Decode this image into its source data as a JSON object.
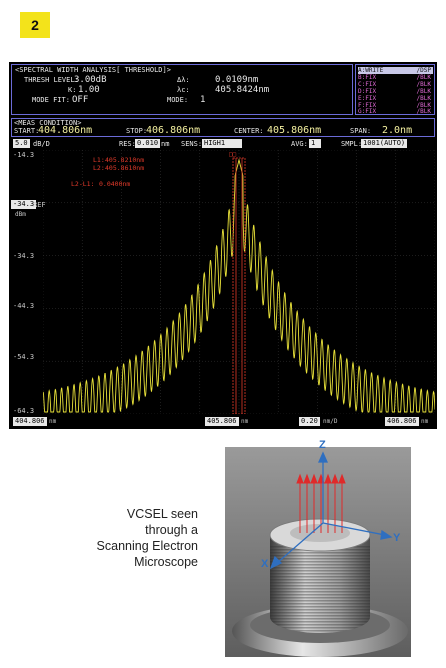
{
  "figure_number": "2",
  "osa": {
    "header_title": "<SPECTRAL WIDTH ANALYSIS[ THRESHOLD]>",
    "thresh_label": "THRESH LEVEL:",
    "thresh_value": "3.00dB",
    "k_label": "K:",
    "k_value": "1.00",
    "mode_fit_label": "MODE FIT:",
    "mode_fit_value": "OFF",
    "dl_label": "Δλ:",
    "dl_value": "0.0109nm",
    "lc_label": "λc:",
    "lc_value": "405.8424nm",
    "mode_label": "MODE:",
    "mode_value": "1",
    "traces": [
      {
        "label": "A:WRITE",
        "status": "/DSP"
      },
      {
        "label": "B:FIX",
        "status": "/BLK"
      },
      {
        "label": "C:FIX",
        "status": "/BLK"
      },
      {
        "label": "D:FIX",
        "status": "/BLK"
      },
      {
        "label": "E:FIX",
        "status": "/BLK"
      },
      {
        "label": "F:FIX",
        "status": "/BLK"
      },
      {
        "label": "G:FIX",
        "status": "/BLK"
      }
    ],
    "meas_condition_label": "<MEAS CONDITION>",
    "start_label": "START:",
    "start_value": "404.806nm",
    "stop_label": "STOP:",
    "stop_value": "406.806nm",
    "center_label": "CENTER:",
    "center_value": "405.806nm",
    "span_label": "SPAN:",
    "span_value": "2.0nm",
    "scale_value": "5.0",
    "scale_unit": "dB/D",
    "res_label": "RES:",
    "res_value": "0.010",
    "res_unit": "nm",
    "sens_label": "SENS:",
    "sens_value": "HIGH1",
    "avg_label": "AVG:",
    "avg_value": "1",
    "smpl_label": "SMPL:",
    "smpl_value": "1001(AUTO)",
    "ref_value": "-34.3",
    "ref_unit": "dBm",
    "ref_tag": "REF",
    "marker_flag": "□□",
    "l1_label": "L1:",
    "l1_value": "405.8210nm",
    "l2_label": "L2:",
    "l2_value": "405.8610nm",
    "l2l1_label": "L2-L1:",
    "l2l1_value": "0.0400nm",
    "y_ticks": [
      "-14.3",
      "-34.3",
      "-44.3",
      "-54.3",
      "-64.3"
    ],
    "bottom_start": "404.806",
    "bottom_start_unit": "nm",
    "bottom_center": "405.806",
    "bottom_center_unit": "nm",
    "bottom_div": "0.20",
    "bottom_div_unit": "nm/D",
    "bottom_stop": "406.806",
    "bottom_stop_unit": "nm",
    "colors": {
      "trace": "#e9e23a",
      "marker": "#e03a2a",
      "panel_border": "#6b6bd8"
    }
  },
  "caption": {
    "line1": "VCSEL seen",
    "line2": "through a",
    "line3": "Scanning Electron",
    "line4": "Microscope"
  },
  "sem": {
    "axis_z": "Z",
    "axis_y": "Y",
    "axis_x": "X"
  }
}
